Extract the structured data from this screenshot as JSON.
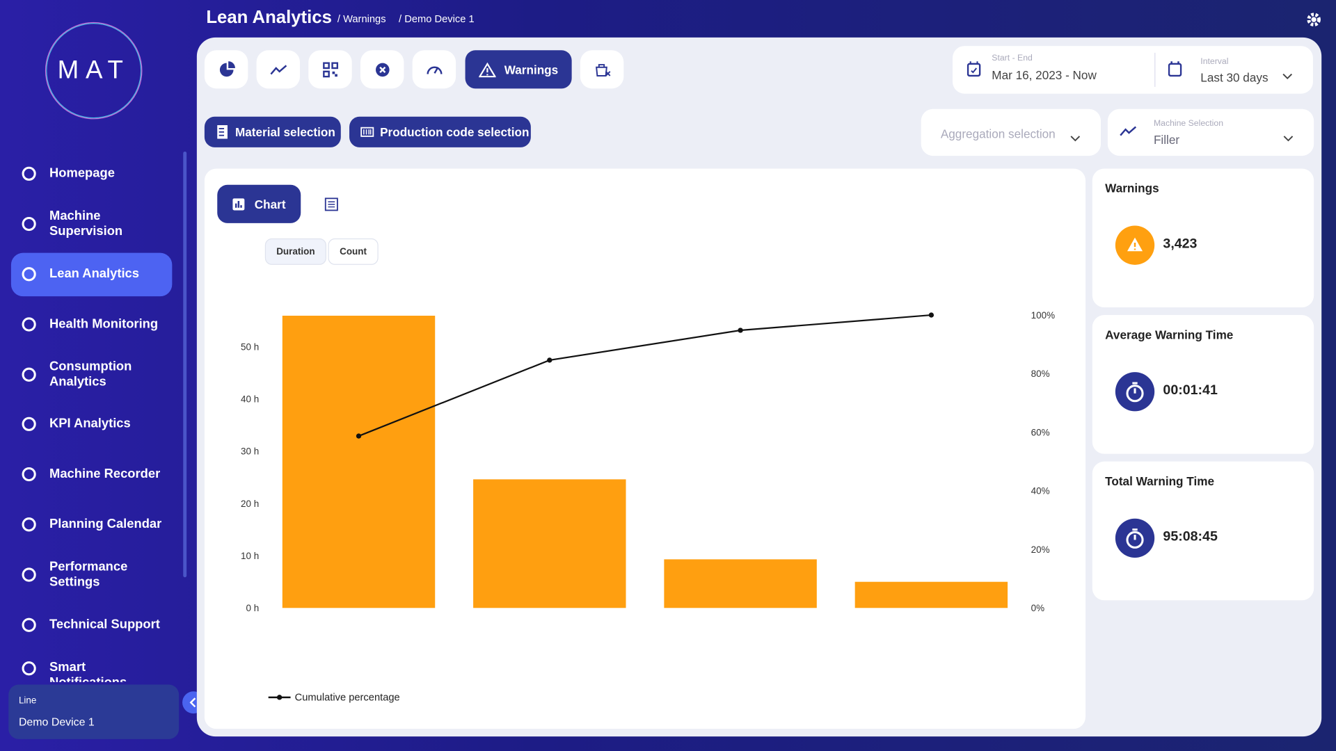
{
  "sidebar": {
    "logo": "MAT",
    "nav": [
      "Homepage",
      "Machine Supervision",
      "Lean Analytics",
      "Health Monitoring",
      "Consumption Analytics",
      "KPI Analytics",
      "Machine Recorder",
      "Planning Calendar",
      "Performance Settings",
      "Technical Support",
      "Smart Notifications"
    ],
    "active": "Lean Analytics",
    "line_label": "Line",
    "line_value": "Demo Device 1"
  },
  "header": {
    "title": "Lean Analytics",
    "breadcrumbs": [
      "/ Warnings",
      "/ Demo Device 1"
    ]
  },
  "toolbar": {
    "active_tab": "Warnings",
    "date_label": "Start - End",
    "date_value": "Mar 16, 2023 - Now",
    "interval_label": "Interval",
    "interval_value": "Last 30 days"
  },
  "filters": {
    "material": "Material selection",
    "production_code": "Production code selection",
    "aggregation": "Aggregation selection",
    "machine_label": "Machine Selection",
    "machine_value": "Filler"
  },
  "view_tabs": {
    "chart": "Chart"
  },
  "metric_toggle": [
    "Duration",
    "Count"
  ],
  "chart_data": {
    "type": "bar",
    "categories": [
      null,
      null,
      null,
      null
    ],
    "series": [
      {
        "color": "#ff9f10",
        "values": [
          55.9,
          24.6,
          9.3,
          5.0
        ]
      },
      {
        "name": "Cumulative percentage",
        "type": "line",
        "axis": "y2",
        "color": "#111111",
        "values": [
          58.7,
          84.6,
          94.8,
          100
        ]
      }
    ],
    "ylim": [
      0,
      60
    ],
    "yticks": [
      {
        "value": 0,
        "label": "0 h"
      },
      {
        "value": 10,
        "label": "10 h"
      },
      {
        "value": 20,
        "label": "20 h"
      },
      {
        "value": 30,
        "label": "30 h"
      },
      {
        "value": 40,
        "label": "40 h"
      },
      {
        "value": 50,
        "label": "50 h"
      }
    ],
    "y2lim": [
      0,
      107.1
    ],
    "y2ticks": [
      {
        "value": 0,
        "label": "0%"
      },
      {
        "value": 20,
        "label": "20%"
      },
      {
        "value": 40,
        "label": "40%"
      },
      {
        "value": 60,
        "label": "60%"
      },
      {
        "value": 80,
        "label": "80%"
      },
      {
        "value": 100,
        "label": "100%"
      }
    ],
    "grid": false,
    "legend": "bottom-left"
  },
  "cards": [
    {
      "title": "Warnings",
      "value": "3,423"
    },
    {
      "title": "Average Warning Time",
      "value": "00:01:41"
    },
    {
      "title": "Total Warning Time",
      "value": "95:08:45"
    }
  ]
}
